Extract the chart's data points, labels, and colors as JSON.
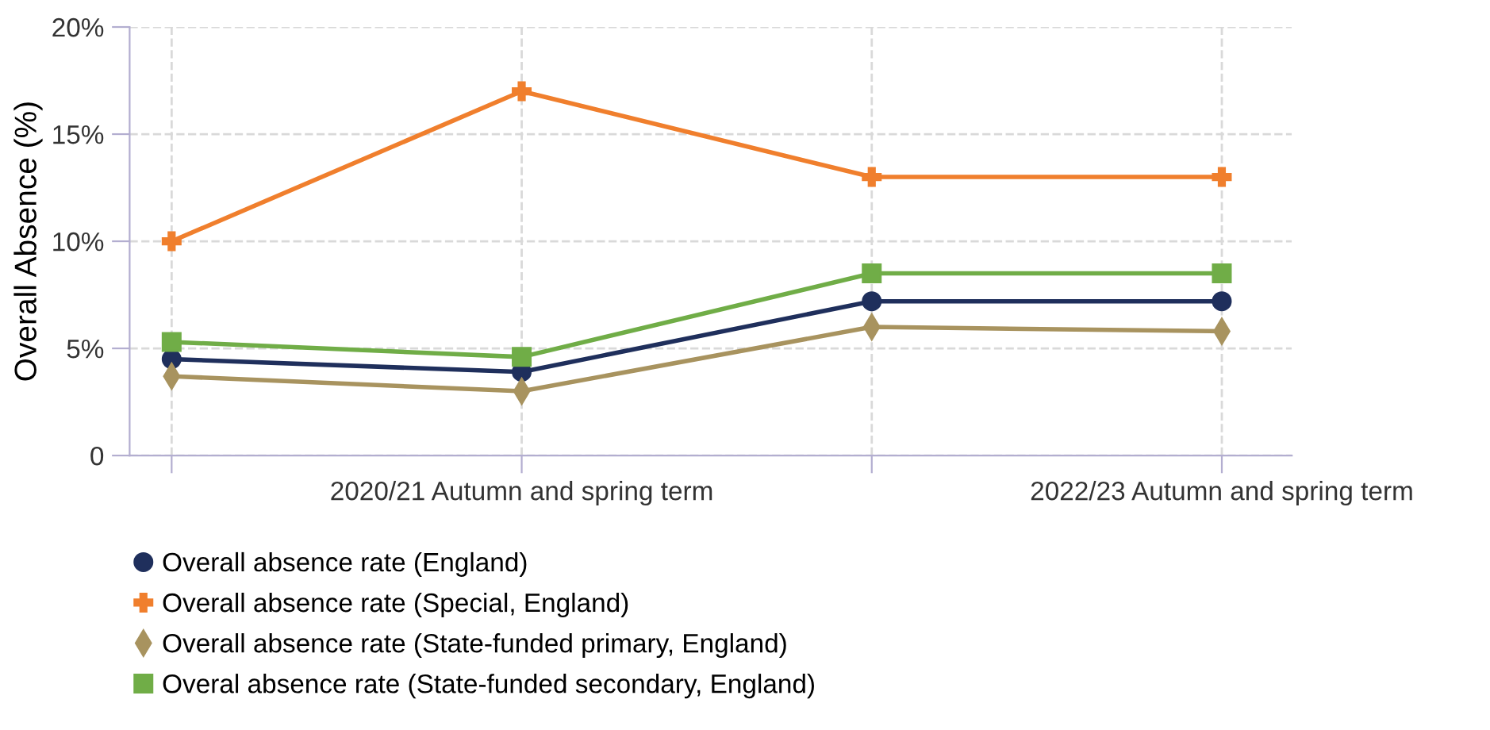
{
  "chart_data": {
    "type": "line",
    "ylabel": "Overall Absence (%)",
    "categories": [
      null,
      "2020/21 Autumn and spring term",
      null,
      "2022/23 Autumn and spring term"
    ],
    "series": [
      {
        "name": "Overall absence rate (England)",
        "color": "#1f2f5c",
        "marker": "circle",
        "values": [
          4.5,
          3.9,
          7.2,
          7.2
        ]
      },
      {
        "name": "Overall absence rate (Special, England)",
        "color": "#f07f2d",
        "marker": "cross",
        "values": [
          10,
          17,
          13,
          13
        ]
      },
      {
        "name": "Overall absence rate (State-funded primary, England)",
        "color": "#a8935f",
        "marker": "diamond",
        "values": [
          3.7,
          3.0,
          6.0,
          5.8
        ]
      },
      {
        "name": "Overal absence rate (State-funded secondary, England)",
        "color": "#70ad47",
        "marker": "square",
        "values": [
          5.3,
          4.6,
          8.5,
          8.5
        ]
      }
    ],
    "ylim": [
      0,
      20
    ],
    "yticks": [
      0,
      {
        "value": 5,
        "label": "5%"
      },
      {
        "value": 10,
        "label": "10%"
      },
      {
        "value": 15,
        "label": "15%"
      },
      {
        "value": 20,
        "label": "20%"
      }
    ],
    "grid": true,
    "legend": "bottom left",
    "line_style": "solid"
  }
}
